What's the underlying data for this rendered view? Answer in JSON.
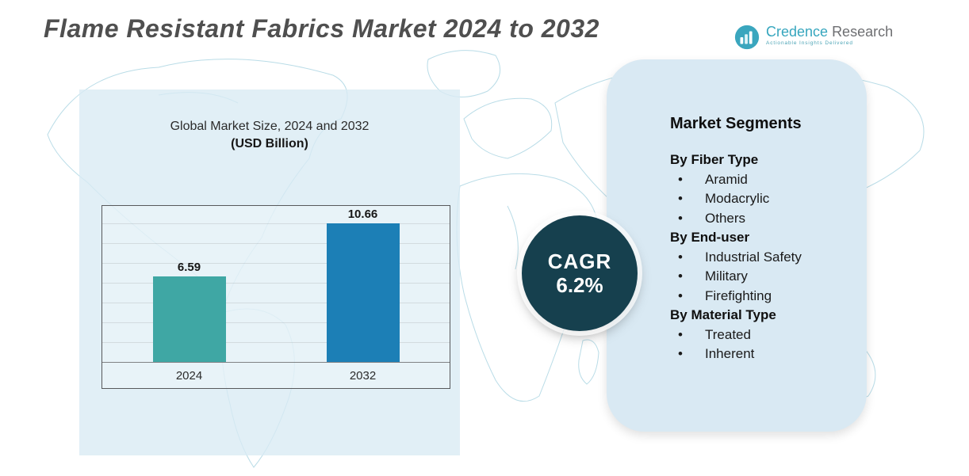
{
  "header": {
    "title": "Flame Resistant Fabrics Market 2024 to 2032"
  },
  "logo": {
    "brand_primary": "Credence",
    "brand_secondary": "Research",
    "tagline": "Actionable Insights Delivered"
  },
  "chart_data": {
    "type": "bar",
    "title": "Global Market Size, 2024 and 2032",
    "subtitle": "(USD Billion)",
    "categories": [
      "2024",
      "2032"
    ],
    "values": [
      6.59,
      10.66
    ],
    "value_labels": [
      "6.59",
      "10.66"
    ],
    "ylim": [
      0,
      12
    ],
    "grid": true,
    "legend": "none",
    "bar_colors": [
      "#3fa7a4",
      "#1c7fb6"
    ]
  },
  "cagr": {
    "label": "CAGR",
    "value": "6.2%"
  },
  "segments": {
    "title": "Market Segments",
    "groups": [
      {
        "heading": "By Fiber Type",
        "items": [
          "Aramid",
          "Modacrylic",
          "Others"
        ]
      },
      {
        "heading": "By End-user",
        "items": [
          "Industrial Safety",
          "Military",
          "Firefighting"
        ]
      },
      {
        "heading": "By Material Type",
        "items": [
          "Treated",
          "Inherent"
        ]
      }
    ]
  },
  "colors": {
    "bar_2024": "#3fa7a4",
    "bar_2032": "#1c7fb6",
    "cagr_circle": "#16404e",
    "panel_left_bg": "#d9eaf3",
    "panel_right_bg": "#d9e9f3",
    "map_line": "#b9dce7",
    "title_text": "#4f4f4f"
  }
}
